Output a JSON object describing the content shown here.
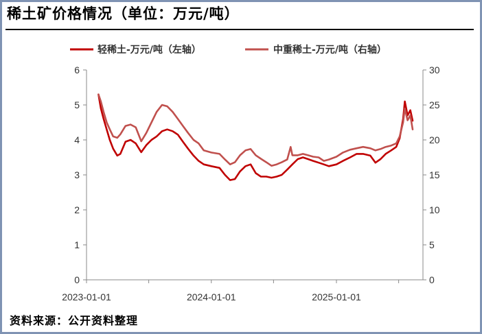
{
  "title": "稀土矿价格情况（单位：万元/吨）",
  "source": "资料来源：公开资料整理",
  "chart_data": {
    "type": "line",
    "x_ticks": [
      "2023-01-01",
      "2024-01-01",
      "2025-01-01"
    ],
    "ylim_left": [
      0,
      6
    ],
    "ylim_right": [
      0,
      30
    ],
    "yticks_left": [
      "0",
      "1",
      "2",
      "3",
      "4",
      "5",
      "6"
    ],
    "yticks_right": [
      "0",
      "5",
      "10",
      "15",
      "20",
      "25",
      "30"
    ],
    "legend_position": "top",
    "series": [
      {
        "name": "轻稀土-万元/吨（左轴）",
        "axis": "left",
        "color": "#c00000",
        "points": [
          [
            "2023-02-05",
            5.3
          ],
          [
            "2023-02-12",
            4.9
          ],
          [
            "2023-02-20",
            4.6
          ],
          [
            "2023-03-01",
            4.3
          ],
          [
            "2023-03-10",
            4.0
          ],
          [
            "2023-03-20",
            3.75
          ],
          [
            "2023-04-01",
            3.55
          ],
          [
            "2023-04-10",
            3.6
          ],
          [
            "2023-04-25",
            3.95
          ],
          [
            "2023-05-10",
            4.0
          ],
          [
            "2023-05-25",
            3.9
          ],
          [
            "2023-06-10",
            3.65
          ],
          [
            "2023-06-25",
            3.85
          ],
          [
            "2023-07-10",
            4.0
          ],
          [
            "2023-07-25",
            4.1
          ],
          [
            "2023-08-10",
            4.25
          ],
          [
            "2023-08-25",
            4.3
          ],
          [
            "2023-09-10",
            4.25
          ],
          [
            "2023-09-25",
            4.15
          ],
          [
            "2023-10-10",
            3.95
          ],
          [
            "2023-10-25",
            3.75
          ],
          [
            "2023-11-10",
            3.55
          ],
          [
            "2023-11-25",
            3.4
          ],
          [
            "2023-12-10",
            3.3
          ],
          [
            "2024-01-01",
            3.25
          ],
          [
            "2024-01-25",
            3.2
          ],
          [
            "2024-02-10",
            3.0
          ],
          [
            "2024-02-25",
            2.85
          ],
          [
            "2024-03-10",
            2.88
          ],
          [
            "2024-03-25",
            3.1
          ],
          [
            "2024-04-10",
            3.25
          ],
          [
            "2024-04-25",
            3.3
          ],
          [
            "2024-05-10",
            3.05
          ],
          [
            "2024-05-25",
            2.95
          ],
          [
            "2024-06-10",
            2.95
          ],
          [
            "2024-06-25",
            2.92
          ],
          [
            "2024-07-10",
            2.95
          ],
          [
            "2024-07-25",
            3.0
          ],
          [
            "2024-08-10",
            3.15
          ],
          [
            "2024-08-25",
            3.3
          ],
          [
            "2024-09-10",
            3.45
          ],
          [
            "2024-09-25",
            3.5
          ],
          [
            "2024-10-10",
            3.45
          ],
          [
            "2024-10-25",
            3.4
          ],
          [
            "2024-11-10",
            3.35
          ],
          [
            "2024-11-25",
            3.3
          ],
          [
            "2024-12-10",
            3.25
          ],
          [
            "2025-01-01",
            3.3
          ],
          [
            "2025-01-20",
            3.4
          ],
          [
            "2025-02-10",
            3.5
          ],
          [
            "2025-03-01",
            3.6
          ],
          [
            "2025-03-20",
            3.6
          ],
          [
            "2025-04-10",
            3.55
          ],
          [
            "2025-04-25",
            3.35
          ],
          [
            "2025-05-10",
            3.45
          ],
          [
            "2025-05-25",
            3.6
          ],
          [
            "2025-06-10",
            3.7
          ],
          [
            "2025-06-25",
            3.8
          ],
          [
            "2025-07-05",
            4.05
          ],
          [
            "2025-07-15",
            4.6
          ],
          [
            "2025-07-20",
            5.1
          ],
          [
            "2025-07-28",
            4.7
          ],
          [
            "2025-08-05",
            4.85
          ],
          [
            "2025-08-12",
            4.55
          ]
        ]
      },
      {
        "name": "中重稀土-万元/吨（右轴）",
        "axis": "right",
        "color": "#c0504d",
        "points": [
          [
            "2023-02-05",
            26.5
          ],
          [
            "2023-02-12",
            25.5
          ],
          [
            "2023-02-20",
            24.0
          ],
          [
            "2023-03-01",
            22.5
          ],
          [
            "2023-03-10",
            21.5
          ],
          [
            "2023-03-20",
            20.5
          ],
          [
            "2023-04-01",
            20.3
          ],
          [
            "2023-04-10",
            20.8
          ],
          [
            "2023-04-25",
            22.0
          ],
          [
            "2023-05-10",
            22.2
          ],
          [
            "2023-05-25",
            21.8
          ],
          [
            "2023-06-10",
            19.8
          ],
          [
            "2023-06-25",
            21.0
          ],
          [
            "2023-07-10",
            22.5
          ],
          [
            "2023-07-25",
            24.0
          ],
          [
            "2023-08-10",
            25.0
          ],
          [
            "2023-08-25",
            24.8
          ],
          [
            "2023-09-10",
            24.0
          ],
          [
            "2023-09-25",
            23.0
          ],
          [
            "2023-10-10",
            22.0
          ],
          [
            "2023-10-25",
            21.0
          ],
          [
            "2023-11-10",
            20.0
          ],
          [
            "2023-11-25",
            19.5
          ],
          [
            "2023-12-10",
            18.5
          ],
          [
            "2024-01-01",
            18.2
          ],
          [
            "2024-01-25",
            18.0
          ],
          [
            "2024-02-10",
            17.2
          ],
          [
            "2024-02-25",
            16.5
          ],
          [
            "2024-03-10",
            16.8
          ],
          [
            "2024-03-25",
            17.8
          ],
          [
            "2024-04-10",
            18.5
          ],
          [
            "2024-04-25",
            18.7
          ],
          [
            "2024-05-10",
            17.8
          ],
          [
            "2024-05-25",
            17.3
          ],
          [
            "2024-06-10",
            16.8
          ],
          [
            "2024-06-25",
            16.3
          ],
          [
            "2024-07-10",
            16.5
          ],
          [
            "2024-07-25",
            16.8
          ],
          [
            "2024-08-10",
            17.2
          ],
          [
            "2024-08-20",
            19.0
          ],
          [
            "2024-08-25",
            17.8
          ],
          [
            "2024-09-10",
            17.8
          ],
          [
            "2024-09-25",
            18.0
          ],
          [
            "2024-10-10",
            17.8
          ],
          [
            "2024-10-25",
            17.6
          ],
          [
            "2024-11-10",
            17.5
          ],
          [
            "2024-11-25",
            17.0
          ],
          [
            "2024-12-10",
            17.2
          ],
          [
            "2025-01-01",
            17.6
          ],
          [
            "2025-01-20",
            18.2
          ],
          [
            "2025-02-10",
            18.6
          ],
          [
            "2025-03-01",
            18.8
          ],
          [
            "2025-03-20",
            19.0
          ],
          [
            "2025-04-10",
            18.8
          ],
          [
            "2025-04-25",
            18.5
          ],
          [
            "2025-05-10",
            18.7
          ],
          [
            "2025-05-25",
            19.0
          ],
          [
            "2025-06-10",
            19.2
          ],
          [
            "2025-06-25",
            19.5
          ],
          [
            "2025-07-05",
            20.5
          ],
          [
            "2025-07-15",
            22.5
          ],
          [
            "2025-07-20",
            24.5
          ],
          [
            "2025-07-28",
            22.8
          ],
          [
            "2025-08-05",
            23.5
          ],
          [
            "2025-08-12",
            21.5
          ]
        ]
      }
    ]
  }
}
